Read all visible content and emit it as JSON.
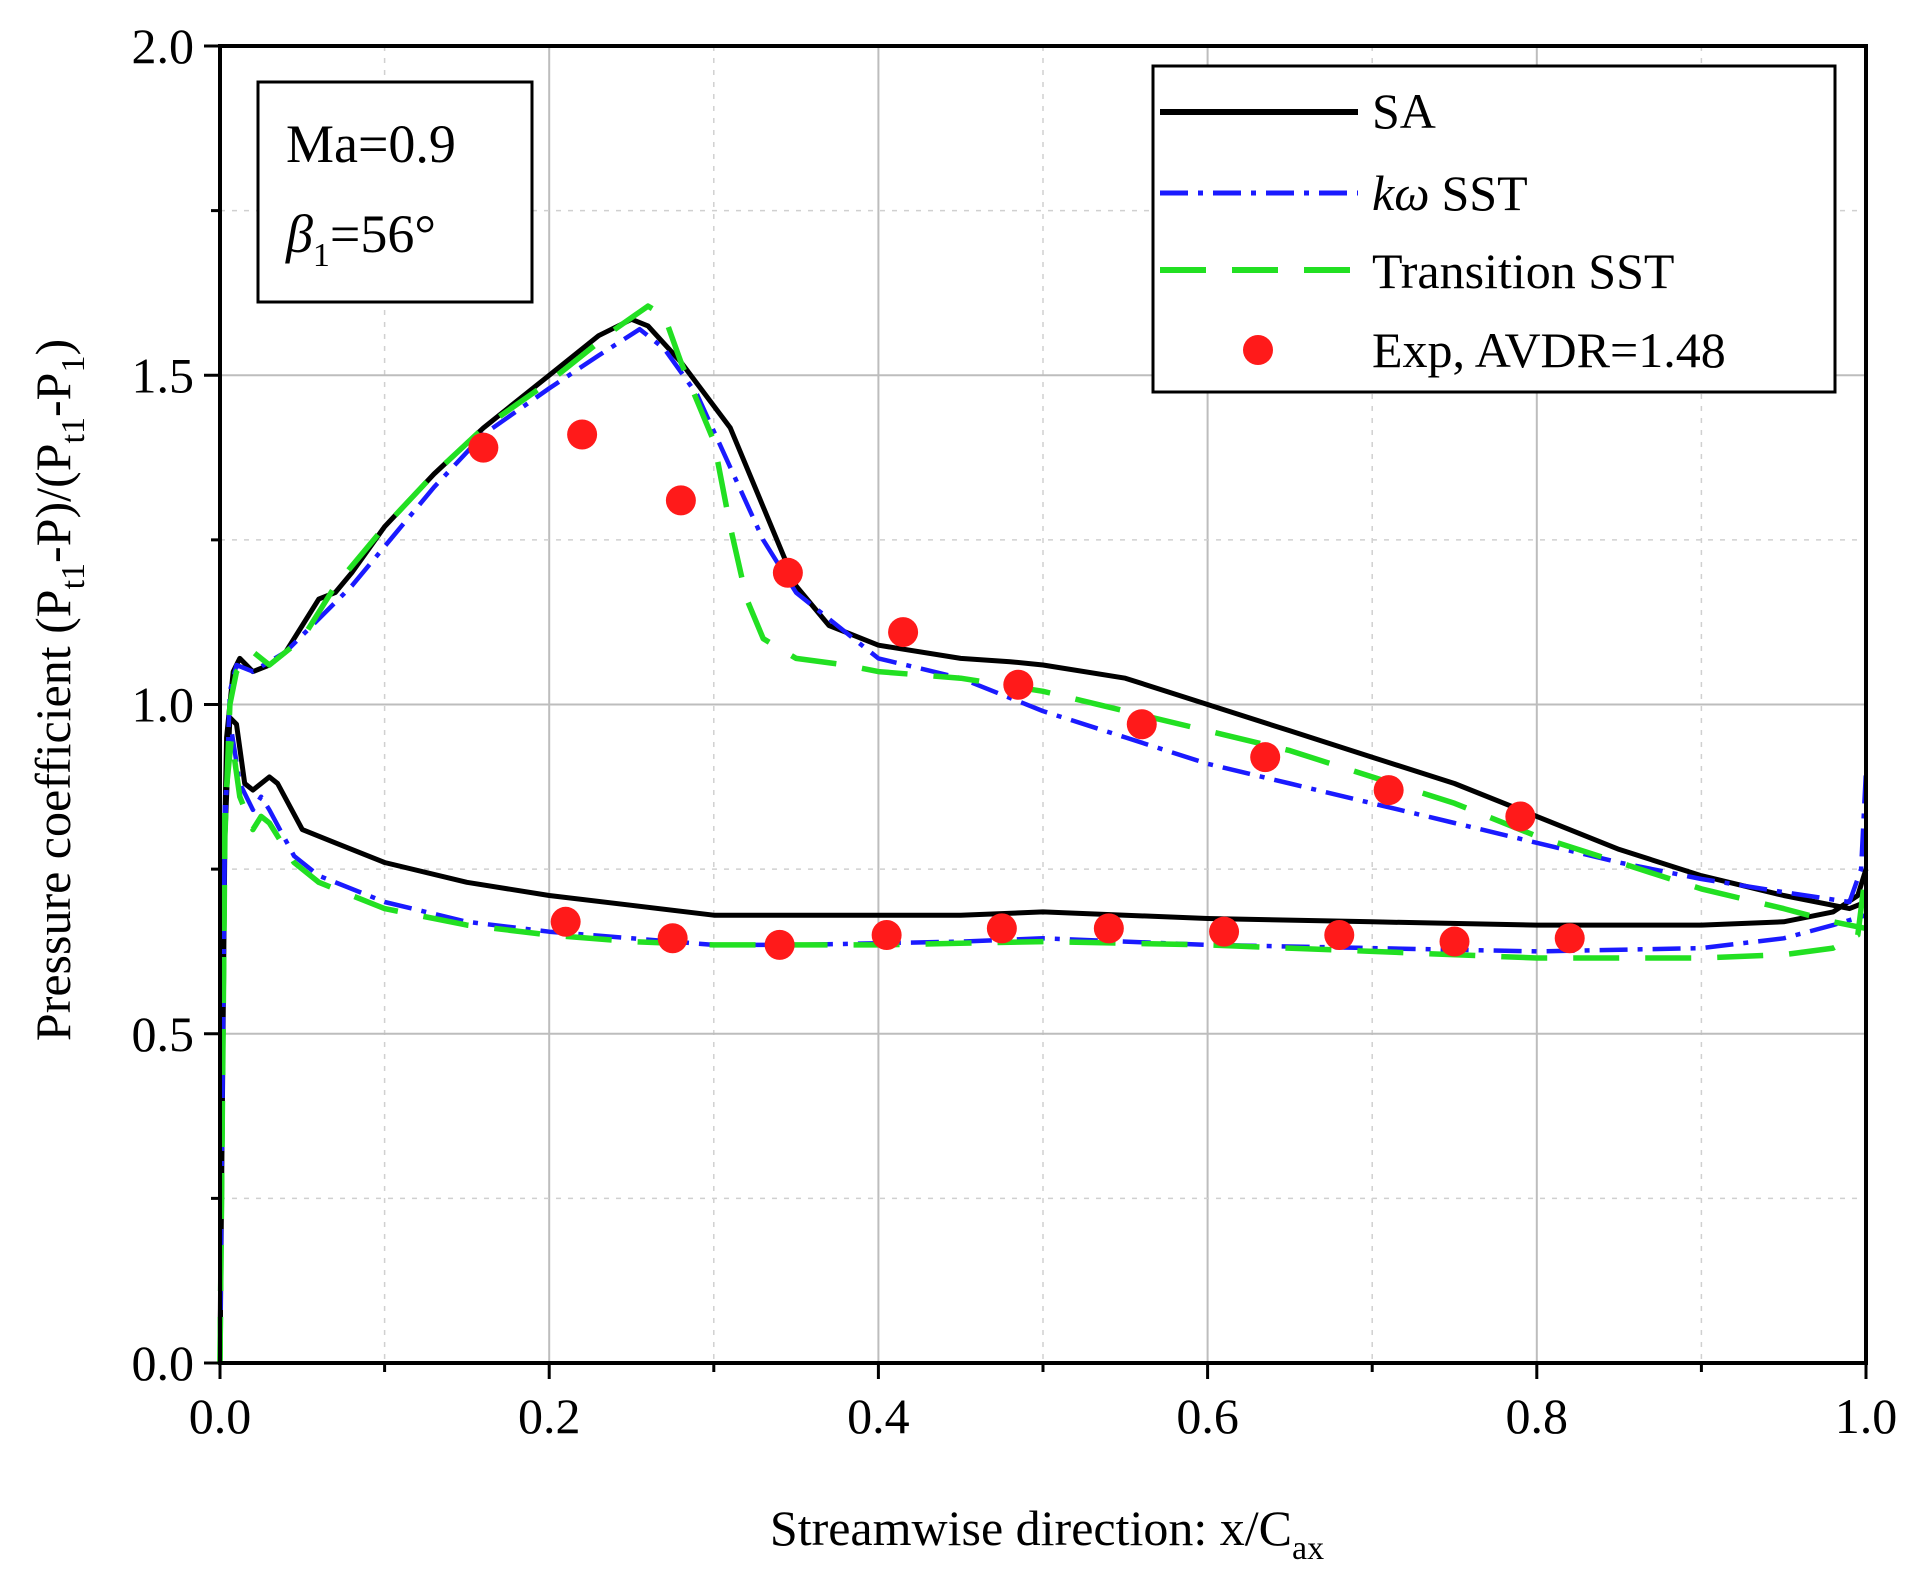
{
  "chart_data": {
    "type": "line",
    "xlabel": "Streamwise direction: x/C",
    "xlabel_sub": "ax",
    "ylabel": "Pressure coefficient (P",
    "ylabel_parts": [
      "t1",
      "-P)/(P",
      "t1",
      "-P",
      "1",
      ")"
    ],
    "xlim": [
      0.0,
      1.0
    ],
    "ylim": [
      0.0,
      2.0
    ],
    "x_ticks": [
      "0.0",
      "0.2",
      "0.4",
      "0.6",
      "0.8",
      "1.0"
    ],
    "y_ticks": [
      "0.0",
      "0.5",
      "1.0",
      "1.5",
      "2.0"
    ],
    "grid": true,
    "legend_position": "top-right",
    "conditions": {
      "line1": "Ma=0.9",
      "line2_symbol": "β",
      "line2_sub": "1",
      "line2_rest": "=56°"
    },
    "series": [
      {
        "name": "SA",
        "legend_prefix": "",
        "color": "#000000",
        "style": "solid",
        "suction": [
          [
            0.0,
            0.0
          ],
          [
            0.002,
            0.7
          ],
          [
            0.004,
            0.95
          ],
          [
            0.008,
            1.05
          ],
          [
            0.012,
            1.07
          ],
          [
            0.02,
            1.05
          ],
          [
            0.03,
            1.06
          ],
          [
            0.04,
            1.08
          ],
          [
            0.05,
            1.12
          ],
          [
            0.06,
            1.16
          ],
          [
            0.07,
            1.17
          ],
          [
            0.08,
            1.2
          ],
          [
            0.1,
            1.27
          ],
          [
            0.13,
            1.35
          ],
          [
            0.16,
            1.42
          ],
          [
            0.2,
            1.5
          ],
          [
            0.23,
            1.56
          ],
          [
            0.25,
            1.585
          ],
          [
            0.26,
            1.575
          ],
          [
            0.28,
            1.52
          ],
          [
            0.31,
            1.42
          ],
          [
            0.33,
            1.3
          ],
          [
            0.35,
            1.18
          ],
          [
            0.37,
            1.12
          ],
          [
            0.4,
            1.09
          ],
          [
            0.45,
            1.07
          ],
          [
            0.48,
            1.065
          ],
          [
            0.5,
            1.06
          ],
          [
            0.55,
            1.04
          ],
          [
            0.6,
            1.0
          ],
          [
            0.65,
            0.96
          ],
          [
            0.7,
            0.92
          ],
          [
            0.75,
            0.88
          ],
          [
            0.8,
            0.83
          ],
          [
            0.85,
            0.78
          ],
          [
            0.9,
            0.74
          ],
          [
            0.95,
            0.71
          ],
          [
            0.99,
            0.69
          ],
          [
            1.0,
            0.7
          ]
        ],
        "pressure": [
          [
            0.0,
            0.0
          ],
          [
            0.003,
            0.8
          ],
          [
            0.006,
            0.98
          ],
          [
            0.01,
            0.97
          ],
          [
            0.015,
            0.88
          ],
          [
            0.02,
            0.87
          ],
          [
            0.03,
            0.89
          ],
          [
            0.035,
            0.88
          ],
          [
            0.05,
            0.81
          ],
          [
            0.07,
            0.79
          ],
          [
            0.1,
            0.76
          ],
          [
            0.15,
            0.73
          ],
          [
            0.2,
            0.71
          ],
          [
            0.25,
            0.695
          ],
          [
            0.3,
            0.68
          ],
          [
            0.4,
            0.68
          ],
          [
            0.45,
            0.68
          ],
          [
            0.5,
            0.685
          ],
          [
            0.55,
            0.68
          ],
          [
            0.6,
            0.675
          ],
          [
            0.7,
            0.67
          ],
          [
            0.8,
            0.665
          ],
          [
            0.9,
            0.665
          ],
          [
            0.95,
            0.67
          ],
          [
            0.98,
            0.685
          ],
          [
            0.995,
            0.71
          ],
          [
            1.0,
            0.75
          ]
        ]
      },
      {
        "name": "SST",
        "legend_prefix": "kω",
        "color": "#1a1aff",
        "style": "dashdot",
        "suction": [
          [
            0.0,
            0.0
          ],
          [
            0.003,
            0.8
          ],
          [
            0.006,
            1.02
          ],
          [
            0.01,
            1.06
          ],
          [
            0.02,
            1.05
          ],
          [
            0.04,
            1.08
          ],
          [
            0.06,
            1.13
          ],
          [
            0.08,
            1.18
          ],
          [
            0.1,
            1.24
          ],
          [
            0.13,
            1.33
          ],
          [
            0.16,
            1.41
          ],
          [
            0.2,
            1.48
          ],
          [
            0.23,
            1.53
          ],
          [
            0.255,
            1.57
          ],
          [
            0.27,
            1.54
          ],
          [
            0.29,
            1.47
          ],
          [
            0.31,
            1.36
          ],
          [
            0.33,
            1.25
          ],
          [
            0.35,
            1.17
          ],
          [
            0.38,
            1.11
          ],
          [
            0.4,
            1.07
          ],
          [
            0.45,
            1.04
          ],
          [
            0.5,
            0.99
          ],
          [
            0.55,
            0.95
          ],
          [
            0.6,
            0.91
          ],
          [
            0.65,
            0.88
          ],
          [
            0.7,
            0.85
          ],
          [
            0.75,
            0.82
          ],
          [
            0.8,
            0.79
          ],
          [
            0.85,
            0.76
          ],
          [
            0.9,
            0.735
          ],
          [
            0.95,
            0.715
          ],
          [
            0.99,
            0.7
          ],
          [
            0.997,
            0.75
          ],
          [
            1.0,
            0.9
          ]
        ],
        "pressure": [
          [
            0.0,
            0.0
          ],
          [
            0.003,
            0.85
          ],
          [
            0.007,
            0.96
          ],
          [
            0.012,
            0.88
          ],
          [
            0.02,
            0.84
          ],
          [
            0.025,
            0.86
          ],
          [
            0.03,
            0.84
          ],
          [
            0.045,
            0.77
          ],
          [
            0.06,
            0.74
          ],
          [
            0.1,
            0.7
          ],
          [
            0.15,
            0.67
          ],
          [
            0.2,
            0.655
          ],
          [
            0.25,
            0.645
          ],
          [
            0.3,
            0.635
          ],
          [
            0.35,
            0.635
          ],
          [
            0.45,
            0.64
          ],
          [
            0.5,
            0.645
          ],
          [
            0.55,
            0.64
          ],
          [
            0.6,
            0.635
          ],
          [
            0.7,
            0.63
          ],
          [
            0.8,
            0.625
          ],
          [
            0.9,
            0.63
          ],
          [
            0.95,
            0.645
          ],
          [
            0.98,
            0.665
          ],
          [
            1.0,
            0.68
          ]
        ]
      },
      {
        "name": "Transition SST",
        "legend_prefix": "",
        "color": "#22e022",
        "style": "dashed",
        "suction": [
          [
            0.0,
            0.0
          ],
          [
            0.003,
            0.8
          ],
          [
            0.006,
            1.0
          ],
          [
            0.01,
            1.05
          ],
          [
            0.02,
            1.08
          ],
          [
            0.03,
            1.06
          ],
          [
            0.05,
            1.1
          ],
          [
            0.07,
            1.18
          ],
          [
            0.1,
            1.27
          ],
          [
            0.13,
            1.35
          ],
          [
            0.16,
            1.42
          ],
          [
            0.2,
            1.49
          ],
          [
            0.24,
            1.57
          ],
          [
            0.26,
            1.605
          ],
          [
            0.27,
            1.59
          ],
          [
            0.28,
            1.52
          ],
          [
            0.3,
            1.4
          ],
          [
            0.31,
            1.27
          ],
          [
            0.32,
            1.16
          ],
          [
            0.33,
            1.1
          ],
          [
            0.35,
            1.07
          ],
          [
            0.38,
            1.06
          ],
          [
            0.4,
            1.05
          ],
          [
            0.45,
            1.04
          ],
          [
            0.5,
            1.02
          ],
          [
            0.55,
            0.99
          ],
          [
            0.6,
            0.96
          ],
          [
            0.65,
            0.93
          ],
          [
            0.7,
            0.89
          ],
          [
            0.75,
            0.85
          ],
          [
            0.8,
            0.8
          ],
          [
            0.85,
            0.76
          ],
          [
            0.9,
            0.72
          ],
          [
            0.95,
            0.69
          ],
          [
            0.98,
            0.67
          ],
          [
            1.0,
            0.66
          ]
        ],
        "pressure": [
          [
            0.0,
            0.0
          ],
          [
            0.003,
            0.85
          ],
          [
            0.007,
            0.95
          ],
          [
            0.012,
            0.86
          ],
          [
            0.02,
            0.81
          ],
          [
            0.025,
            0.83
          ],
          [
            0.03,
            0.82
          ],
          [
            0.045,
            0.76
          ],
          [
            0.06,
            0.73
          ],
          [
            0.1,
            0.69
          ],
          [
            0.15,
            0.665
          ],
          [
            0.2,
            0.65
          ],
          [
            0.25,
            0.64
          ],
          [
            0.3,
            0.635
          ],
          [
            0.4,
            0.635
          ],
          [
            0.5,
            0.64
          ],
          [
            0.6,
            0.635
          ],
          [
            0.7,
            0.625
          ],
          [
            0.8,
            0.615
          ],
          [
            0.9,
            0.615
          ],
          [
            0.95,
            0.62
          ],
          [
            0.98,
            0.63
          ],
          [
            0.995,
            0.65
          ],
          [
            1.0,
            0.75
          ]
        ]
      },
      {
        "name": "Exp, AVDR=1.48",
        "legend_prefix": "",
        "color": "#ff1a1a",
        "style": "markers",
        "points": [
          [
            0.16,
            1.39
          ],
          [
            0.22,
            1.41
          ],
          [
            0.28,
            1.31
          ],
          [
            0.345,
            1.2
          ],
          [
            0.415,
            1.11
          ],
          [
            0.485,
            1.03
          ],
          [
            0.56,
            0.97
          ],
          [
            0.635,
            0.92
          ],
          [
            0.71,
            0.87
          ],
          [
            0.79,
            0.83
          ],
          [
            0.21,
            0.67
          ],
          [
            0.275,
            0.645
          ],
          [
            0.34,
            0.635
          ],
          [
            0.405,
            0.65
          ],
          [
            0.475,
            0.66
          ],
          [
            0.54,
            0.66
          ],
          [
            0.61,
            0.655
          ],
          [
            0.68,
            0.65
          ],
          [
            0.75,
            0.64
          ],
          [
            0.82,
            0.645
          ]
        ]
      }
    ]
  }
}
